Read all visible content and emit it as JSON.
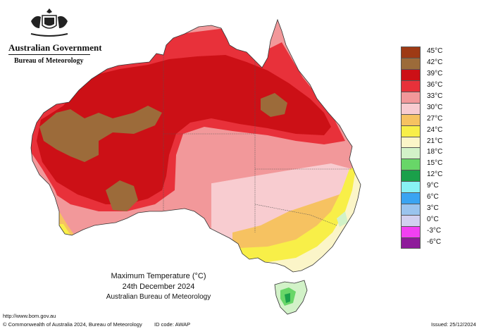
{
  "header": {
    "government": "Australian Government",
    "bureau": "Bureau of Meteorology"
  },
  "map": {
    "title_line1": "Maximum Temperature (°C)",
    "title_line2": "24th December 2024",
    "title_line3": "Australian Bureau of Meteorology"
  },
  "legend": {
    "items": [
      {
        "label": "45°C",
        "color": "#9e3a14"
      },
      {
        "label": "42°C",
        "color": "#9c6b3a"
      },
      {
        "label": "39°C",
        "color": "#cc1016"
      },
      {
        "label": "36°C",
        "color": "#e8313a"
      },
      {
        "label": "33°C",
        "color": "#f2989a"
      },
      {
        "label": "30°C",
        "color": "#f8ccd0"
      },
      {
        "label": "27°C",
        "color": "#f6c261"
      },
      {
        "label": "24°C",
        "color": "#f8ef48"
      },
      {
        "label": "21°C",
        "color": "#fbf5c8"
      },
      {
        "label": "18°C",
        "color": "#d2f2c8"
      },
      {
        "label": "15°C",
        "color": "#68d668"
      },
      {
        "label": "12°C",
        "color": "#1aa04a"
      },
      {
        "label": "9°C",
        "color": "#88f2f4"
      },
      {
        "label": "6°C",
        "color": "#3aa4f2"
      },
      {
        "label": "3°C",
        "color": "#9ac4ee"
      },
      {
        "label": "0°C",
        "color": "#d2d0f0"
      },
      {
        "label": "-3°C",
        "color": "#f240f2"
      },
      {
        "label": "-6°C",
        "color": "#8e1a9a"
      }
    ]
  },
  "footer": {
    "url": "http://www.bom.gov.au",
    "copyright": "© Commonwealth of Australia 2024, Bureau of Meteorology",
    "id_code": "ID code: AWAP",
    "issued": "Issued: 25/12/2024"
  }
}
